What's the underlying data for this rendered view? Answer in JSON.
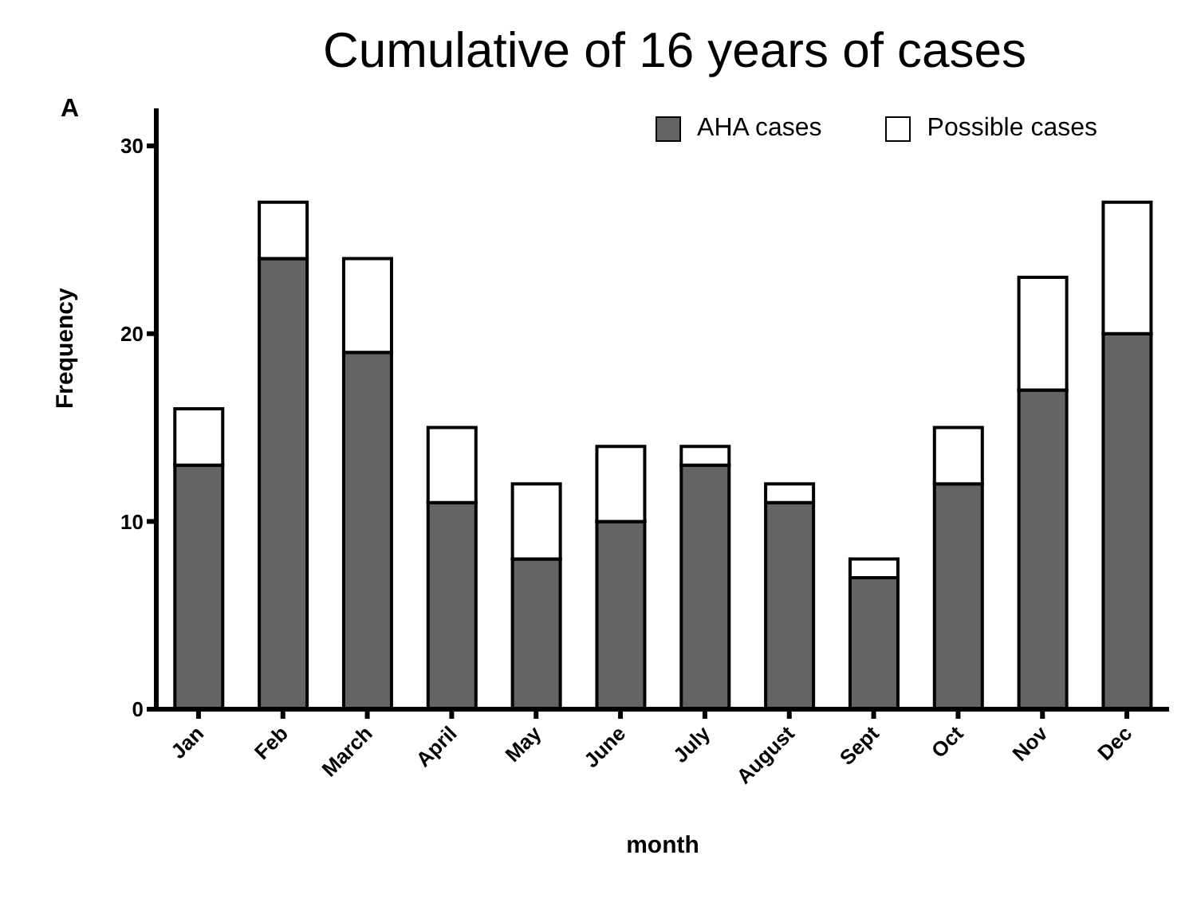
{
  "chart_data": {
    "type": "bar",
    "title": "Cumulative of 16 years of cases",
    "xlabel": "month",
    "ylabel": "Frequency",
    "annotations": [
      "A"
    ],
    "categories": [
      "Jan",
      "Feb",
      "March",
      "April",
      "May",
      "June",
      "July",
      "August",
      "Sept",
      "Oct",
      "Nov",
      "Dec"
    ],
    "series": [
      {
        "name": "AHA cases",
        "color": "#646464",
        "values": [
          13,
          24,
          19,
          11,
          8,
          10,
          13,
          11,
          7,
          12,
          17,
          20
        ]
      },
      {
        "name": "Possible cases",
        "color": "#ffffff",
        "values": [
          3,
          3,
          5,
          4,
          4,
          4,
          1,
          1,
          1,
          3,
          6,
          7
        ]
      }
    ],
    "stacked": true,
    "ylim": [
      0,
      32
    ],
    "yticks": [
      0,
      10,
      20,
      30
    ],
    "grid": false,
    "legend": "top right"
  }
}
